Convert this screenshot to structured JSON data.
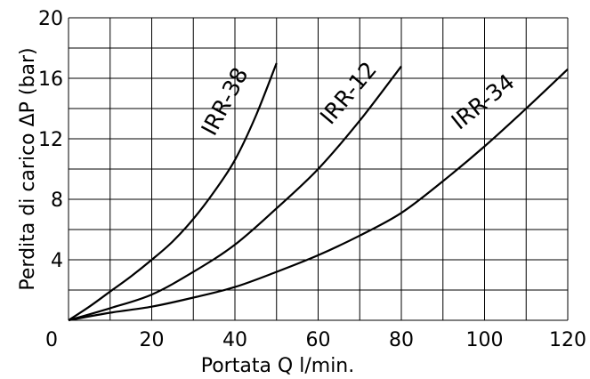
{
  "chart_data": {
    "type": "line",
    "xlabel": "Portata Q l/min.",
    "ylabel": "Perdita di carico ΔP (bar)",
    "xlim": [
      0,
      120
    ],
    "ylim": [
      0,
      20
    ],
    "x_ticks": [
      "0",
      "20",
      "40",
      "60",
      "80",
      "100",
      "120"
    ],
    "y_ticks": [
      "4",
      "8",
      "12",
      "16",
      "20"
    ],
    "grid": true,
    "legend": "none",
    "series": [
      {
        "name": "IRR-38",
        "x": [
          0,
          5,
          10,
          15,
          20,
          25,
          30,
          35,
          40,
          45,
          50
        ],
        "y": [
          0,
          0.9,
          1.9,
          2.9,
          4.0,
          5.2,
          6.7,
          8.5,
          10.6,
          13.5,
          17.0
        ]
      },
      {
        "name": "IRR-12",
        "x": [
          0,
          10,
          20,
          30,
          40,
          50,
          60,
          70,
          80
        ],
        "y": [
          0,
          0.8,
          1.7,
          3.2,
          5.0,
          7.4,
          10.0,
          13.2,
          16.8
        ]
      },
      {
        "name": "IRR-34",
        "x": [
          0,
          10,
          20,
          30,
          40,
          50,
          60,
          70,
          80,
          90,
          100,
          110,
          120
        ],
        "y": [
          0,
          0.5,
          0.9,
          1.5,
          2.2,
          3.2,
          4.3,
          5.6,
          7.1,
          9.2,
          11.5,
          14.0,
          16.6
        ]
      }
    ]
  }
}
